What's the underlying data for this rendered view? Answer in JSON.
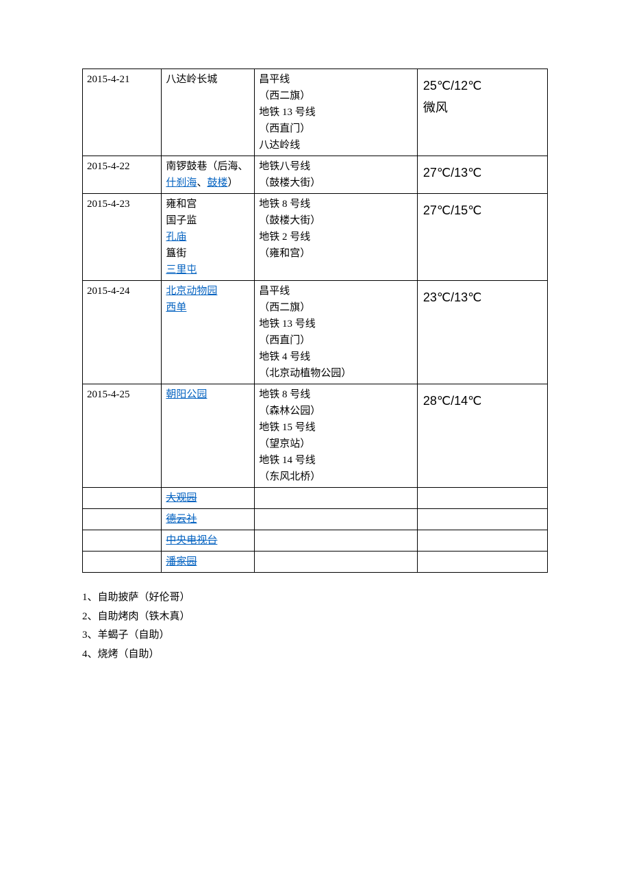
{
  "table": {
    "border_color": "#000000",
    "link_color": "#0563c1",
    "rows": [
      {
        "date": "2015-4-21",
        "dest": [
          {
            "text": "八达岭长城",
            "link": false
          }
        ],
        "route": [
          "昌平线",
          "（西二旗）",
          "地铁 13 号线",
          "（西直门）",
          "八达岭线"
        ],
        "weather": [
          "25℃/12℃",
          "微风"
        ]
      },
      {
        "date": "2015-4-22",
        "dest_raw": "南锣鼓巷（后海、什刹海、鼓楼）",
        "route": [
          "地铁八号线",
          "（鼓楼大街）"
        ],
        "weather": [
          "27℃/13℃"
        ]
      },
      {
        "date": "2015-4-23",
        "dest": [
          {
            "text": "雍和宫",
            "link": false
          },
          {
            "text": "国子监",
            "link": false
          },
          {
            "text": "孔庙",
            "link": true
          },
          {
            "text": "簋街",
            "link": false
          },
          {
            "text": "三里屯",
            "link": true
          }
        ],
        "route": [
          "地铁 8 号线",
          "（鼓楼大街）",
          "地铁 2 号线",
          "（雍和宫）"
        ],
        "weather": [
          "27℃/15℃"
        ]
      },
      {
        "date": "2015-4-24",
        "dest": [
          {
            "text": "北京动物园",
            "link": true
          },
          {
            "text": "西单",
            "link": true
          }
        ],
        "route": [
          "昌平线",
          "（西二旗）",
          "地铁 13 号线",
          "（西直门）",
          "地铁 4 号线",
          "（北京动植物公园）"
        ],
        "weather": [
          "23℃/13℃"
        ]
      },
      {
        "date": "2015-4-25",
        "dest": [
          {
            "text": "朝阳公园",
            "link": true
          }
        ],
        "route": [
          "地铁 8 号线",
          "（森林公园）",
          "地铁 15 号线",
          "（望京站）",
          "地铁 14 号线",
          "（东风北桥）"
        ],
        "weather": [
          "28℃/14℃"
        ]
      }
    ],
    "extra_rows": [
      {
        "text": "大观园"
      },
      {
        "text": "德云社"
      },
      {
        "text": "中央电视台"
      },
      {
        "text": "潘家园"
      }
    ],
    "row2_parts": {
      "p1": "南锣鼓巷（后海、",
      "p2": "什刹海",
      "p3": "、",
      "p4": "鼓楼",
      "p5": "）"
    }
  },
  "notes": [
    "1、自助披萨（好伦哥）",
    "2、自助烤肉（铁木真）",
    "3、羊蝎子（自助）",
    "4、烧烤（自助）"
  ]
}
